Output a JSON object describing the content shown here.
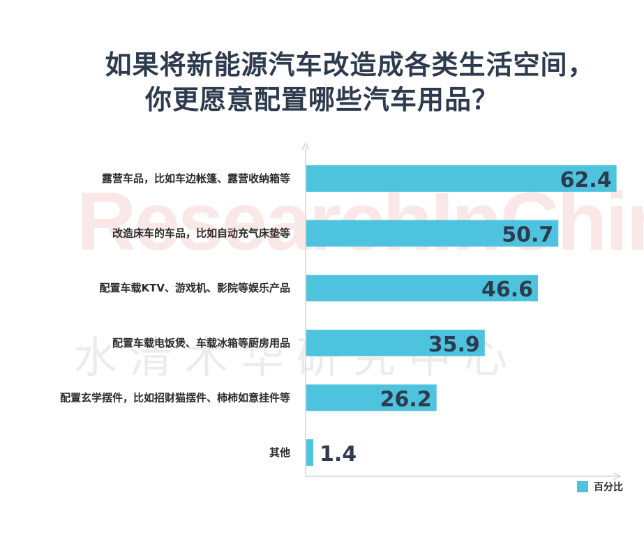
{
  "title_line1": "如果将新能源汽车改造成各类生活空间，",
  "title_line2": "你更愿意配置哪些汽车用品？",
  "watermark_en": "ResearchInChina",
  "watermark_cn": "水清木华研究中心",
  "chart_data": {
    "type": "bar",
    "orientation": "horizontal",
    "categories": [
      "露营车品，比如车边帐篷、露营收纳箱等",
      "改造床车的车品，比如自动充气床垫等",
      "配置车载KTV、游戏机、影院等娱乐产品",
      "配置车载电饭煲、车载冰箱等厨房用品",
      "配置玄学摆件，比如招财猫摆件、柿柿如意挂件等",
      "其他"
    ],
    "series": [
      {
        "name": "百分比",
        "values": [
          62.4,
          50.7,
          46.6,
          35.9,
          26.2,
          1.4
        ],
        "color": "#4ec3dd"
      }
    ],
    "value_labels": [
      "62.4",
      "50.7",
      "46.6",
      "35.9",
      "26.2",
      "1.4"
    ],
    "xlim": [
      0,
      64
    ],
    "legend_position": "bottom-right",
    "grid": false
  }
}
